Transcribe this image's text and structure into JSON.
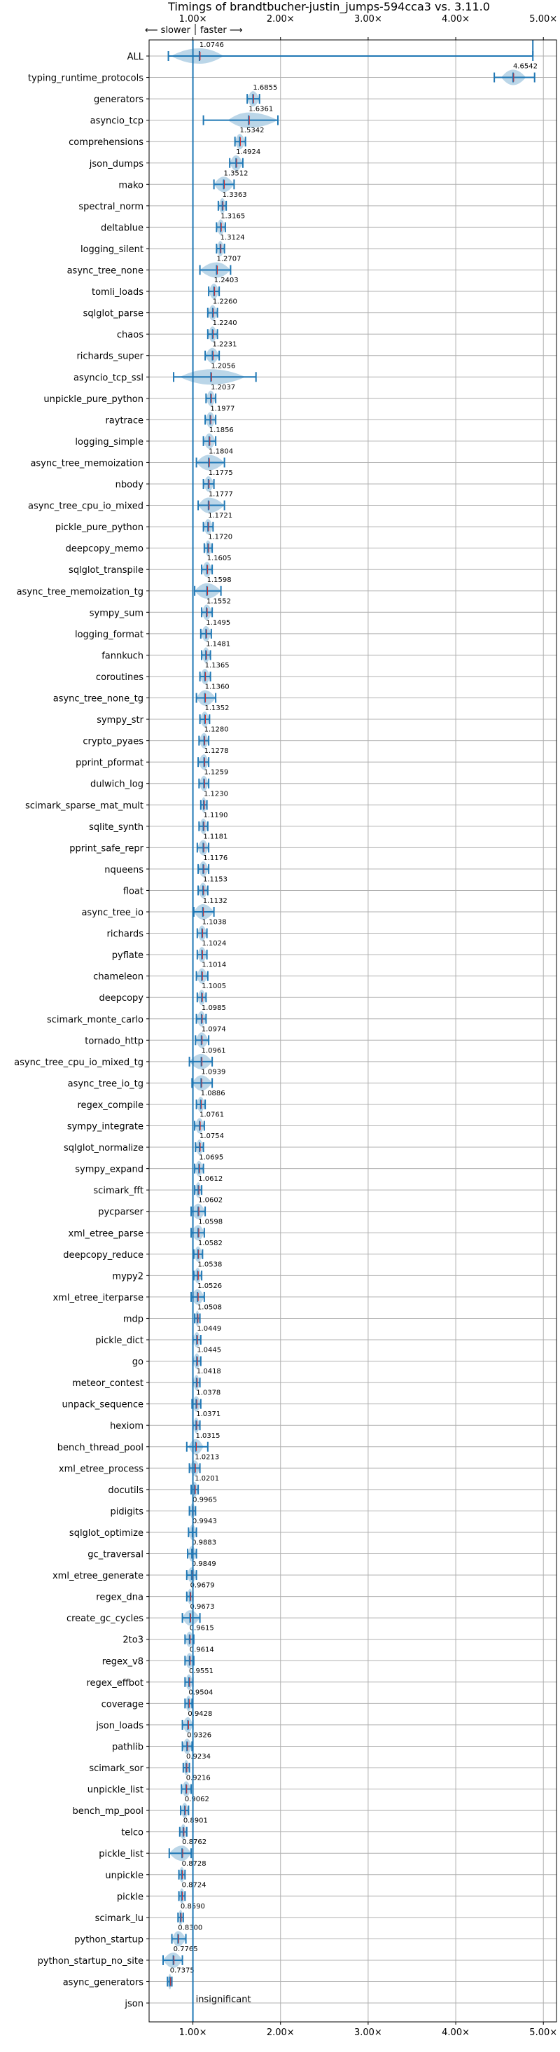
{
  "chart_data": {
    "type": "violin",
    "title": "Timings of brandtbucher-justin_jumps-594cca3 vs. 3.11.0",
    "direction_labels": {
      "slower": "⟵ slower",
      "faster": "faster ⟶"
    },
    "x_ticks": [
      {
        "value": 1,
        "label": "1.00×"
      },
      {
        "value": 2,
        "label": "2.00×"
      },
      {
        "value": 3,
        "label": "3.00×"
      },
      {
        "value": 4,
        "label": "4.00×"
      },
      {
        "value": 5,
        "label": "5.00×"
      }
    ],
    "xlim": [
      0.5,
      5.15
    ],
    "grid": true,
    "reference_line": 1.0,
    "insignificant_label": "insignificant",
    "benchmarks": [
      {
        "name": "ALL",
        "label": "1.0746",
        "value": 1.0746,
        "lo": 0.72,
        "hi": 4.88,
        "violin": [
          0.75,
          1.35
        ]
      },
      {
        "name": "typing_runtime_protocols",
        "label": "4.6542",
        "value": 4.6542,
        "lo": 4.44,
        "hi": 4.9,
        "violin": [
          4.52,
          4.8
        ]
      },
      {
        "name": "generators",
        "label": "1.6855",
        "value": 1.6855,
        "lo": 1.62,
        "hi": 1.76,
        "violin": [
          1.62,
          1.76
        ]
      },
      {
        "name": "asyncio_tcp",
        "label": "1.6361",
        "value": 1.6361,
        "lo": 1.12,
        "hi": 1.97,
        "violin": [
          1.4,
          1.97
        ]
      },
      {
        "name": "comprehensions",
        "label": "1.5342",
        "value": 1.5342,
        "lo": 1.48,
        "hi": 1.6,
        "violin": [
          1.48,
          1.6
        ]
      },
      {
        "name": "json_dumps",
        "label": "1.4924",
        "value": 1.4924,
        "lo": 1.42,
        "hi": 1.57,
        "violin": [
          1.42,
          1.57
        ]
      },
      {
        "name": "mako",
        "label": "1.3512",
        "value": 1.3512,
        "lo": 1.24,
        "hi": 1.47,
        "violin": [
          1.24,
          1.47
        ]
      },
      {
        "name": "spectral_norm",
        "label": "1.3363",
        "value": 1.3363,
        "lo": 1.29,
        "hi": 1.38,
        "violin": [
          1.29,
          1.38
        ]
      },
      {
        "name": "deltablue",
        "label": "1.3165",
        "value": 1.3165,
        "lo": 1.27,
        "hi": 1.37,
        "violin": [
          1.27,
          1.37
        ]
      },
      {
        "name": "logging_silent",
        "label": "1.3124",
        "value": 1.3124,
        "lo": 1.27,
        "hi": 1.36,
        "violin": [
          1.27,
          1.36
        ]
      },
      {
        "name": "async_tree_none",
        "label": "1.2707",
        "value": 1.2707,
        "lo": 1.08,
        "hi": 1.43,
        "violin": [
          1.08,
          1.43
        ]
      },
      {
        "name": "tomli_loads",
        "label": "1.2403",
        "value": 1.2403,
        "lo": 1.18,
        "hi": 1.3,
        "violin": [
          1.18,
          1.3
        ]
      },
      {
        "name": "sqlglot_parse",
        "label": "1.2260",
        "value": 1.226,
        "lo": 1.17,
        "hi": 1.28,
        "violin": [
          1.17,
          1.28
        ]
      },
      {
        "name": "chaos",
        "label": "1.2240",
        "value": 1.224,
        "lo": 1.17,
        "hi": 1.28,
        "violin": [
          1.17,
          1.28
        ]
      },
      {
        "name": "richards_super",
        "label": "1.2231",
        "value": 1.2231,
        "lo": 1.14,
        "hi": 1.3,
        "violin": [
          1.14,
          1.3
        ]
      },
      {
        "name": "asyncio_tcp_ssl",
        "label": "1.2056",
        "value": 1.2056,
        "lo": 0.78,
        "hi": 1.72,
        "violin": [
          0.85,
          1.6
        ]
      },
      {
        "name": "unpickle_pure_python",
        "label": "1.2037",
        "value": 1.2037,
        "lo": 1.15,
        "hi": 1.26,
        "violin": [
          1.15,
          1.26
        ]
      },
      {
        "name": "raytrace",
        "label": "1.1977",
        "value": 1.1977,
        "lo": 1.14,
        "hi": 1.26,
        "violin": [
          1.14,
          1.26
        ]
      },
      {
        "name": "logging_simple",
        "label": "1.1856",
        "value": 1.1856,
        "lo": 1.12,
        "hi": 1.26,
        "violin": [
          1.12,
          1.26
        ]
      },
      {
        "name": "async_tree_memoization",
        "label": "1.1804",
        "value": 1.1804,
        "lo": 1.04,
        "hi": 1.36,
        "violin": [
          1.04,
          1.36
        ]
      },
      {
        "name": "nbody",
        "label": "1.1775",
        "value": 1.1775,
        "lo": 1.12,
        "hi": 1.24,
        "violin": [
          1.12,
          1.24
        ]
      },
      {
        "name": "async_tree_cpu_io_mixed",
        "label": "1.1777",
        "value": 1.1777,
        "lo": 1.06,
        "hi": 1.36,
        "violin": [
          1.06,
          1.36
        ]
      },
      {
        "name": "pickle_pure_python",
        "label": "1.1721",
        "value": 1.1721,
        "lo": 1.12,
        "hi": 1.23,
        "violin": [
          1.12,
          1.23
        ]
      },
      {
        "name": "deepcopy_memo",
        "label": "1.1720",
        "value": 1.172,
        "lo": 1.13,
        "hi": 1.22,
        "violin": [
          1.13,
          1.22
        ]
      },
      {
        "name": "sqlglot_transpile",
        "label": "1.1605",
        "value": 1.1605,
        "lo": 1.1,
        "hi": 1.22,
        "violin": [
          1.1,
          1.22
        ]
      },
      {
        "name": "async_tree_memoization_tg",
        "label": "1.1598",
        "value": 1.1598,
        "lo": 1.02,
        "hi": 1.32,
        "violin": [
          1.02,
          1.32
        ]
      },
      {
        "name": "sympy_sum",
        "label": "1.1552",
        "value": 1.1552,
        "lo": 1.1,
        "hi": 1.22,
        "violin": [
          1.1,
          1.22
        ]
      },
      {
        "name": "logging_format",
        "label": "1.1495",
        "value": 1.1495,
        "lo": 1.09,
        "hi": 1.21,
        "violin": [
          1.09,
          1.21
        ]
      },
      {
        "name": "fannkuch",
        "label": "1.1481",
        "value": 1.1481,
        "lo": 1.1,
        "hi": 1.2,
        "violin": [
          1.1,
          1.2
        ]
      },
      {
        "name": "coroutines",
        "label": "1.1365",
        "value": 1.1365,
        "lo": 1.08,
        "hi": 1.2,
        "violin": [
          1.08,
          1.2
        ]
      },
      {
        "name": "async_tree_none_tg",
        "label": "1.1360",
        "value": 1.136,
        "lo": 1.04,
        "hi": 1.26,
        "violin": [
          1.04,
          1.26
        ]
      },
      {
        "name": "sympy_str",
        "label": "1.1352",
        "value": 1.1352,
        "lo": 1.08,
        "hi": 1.19,
        "violin": [
          1.08,
          1.19
        ]
      },
      {
        "name": "crypto_pyaes",
        "label": "1.1280",
        "value": 1.128,
        "lo": 1.07,
        "hi": 1.18,
        "violin": [
          1.07,
          1.18
        ]
      },
      {
        "name": "pprint_pformat",
        "label": "1.1278",
        "value": 1.1278,
        "lo": 1.06,
        "hi": 1.18,
        "violin": [
          1.06,
          1.18
        ]
      },
      {
        "name": "dulwich_log",
        "label": "1.1259",
        "value": 1.1259,
        "lo": 1.07,
        "hi": 1.18,
        "violin": [
          1.07,
          1.18
        ]
      },
      {
        "name": "scimark_sparse_mat_mult",
        "label": "1.1230",
        "value": 1.123,
        "lo": 1.09,
        "hi": 1.16,
        "violin": [
          1.09,
          1.16
        ]
      },
      {
        "name": "sqlite_synth",
        "label": "1.1190",
        "value": 1.119,
        "lo": 1.07,
        "hi": 1.17,
        "violin": [
          1.07,
          1.17
        ]
      },
      {
        "name": "pprint_safe_repr",
        "label": "1.1181",
        "value": 1.1181,
        "lo": 1.05,
        "hi": 1.18,
        "violin": [
          1.05,
          1.18
        ]
      },
      {
        "name": "nqueens",
        "label": "1.1176",
        "value": 1.1176,
        "lo": 1.06,
        "hi": 1.18,
        "violin": [
          1.06,
          1.18
        ]
      },
      {
        "name": "float",
        "label": "1.1153",
        "value": 1.1153,
        "lo": 1.06,
        "hi": 1.17,
        "violin": [
          1.06,
          1.17
        ]
      },
      {
        "name": "async_tree_io",
        "label": "1.1132",
        "value": 1.1132,
        "lo": 1.01,
        "hi": 1.24,
        "violin": [
          1.01,
          1.24
        ]
      },
      {
        "name": "richards",
        "label": "1.1038",
        "value": 1.1038,
        "lo": 1.05,
        "hi": 1.16,
        "violin": [
          1.05,
          1.16
        ]
      },
      {
        "name": "pyflate",
        "label": "1.1024",
        "value": 1.1024,
        "lo": 1.05,
        "hi": 1.16,
        "violin": [
          1.05,
          1.16
        ]
      },
      {
        "name": "chameleon",
        "label": "1.1014",
        "value": 1.1014,
        "lo": 1.04,
        "hi": 1.17,
        "violin": [
          1.04,
          1.17
        ]
      },
      {
        "name": "deepcopy",
        "label": "1.1005",
        "value": 1.1005,
        "lo": 1.05,
        "hi": 1.15,
        "violin": [
          1.05,
          1.15
        ]
      },
      {
        "name": "scimark_monte_carlo",
        "label": "1.0985",
        "value": 1.0985,
        "lo": 1.04,
        "hi": 1.15,
        "violin": [
          1.04,
          1.15
        ]
      },
      {
        "name": "tornado_http",
        "label": "1.0974",
        "value": 1.0974,
        "lo": 1.03,
        "hi": 1.18,
        "violin": [
          1.03,
          1.18
        ]
      },
      {
        "name": "async_tree_cpu_io_mixed_tg",
        "label": "1.0961",
        "value": 1.0961,
        "lo": 0.96,
        "hi": 1.22,
        "violin": [
          0.96,
          1.22
        ]
      },
      {
        "name": "async_tree_io_tg",
        "label": "1.0939",
        "value": 1.0939,
        "lo": 0.99,
        "hi": 1.22,
        "violin": [
          0.99,
          1.22
        ]
      },
      {
        "name": "regex_compile",
        "label": "1.0886",
        "value": 1.0886,
        "lo": 1.04,
        "hi": 1.14,
        "violin": [
          1.04,
          1.14
        ]
      },
      {
        "name": "sympy_integrate",
        "label": "1.0761",
        "value": 1.0761,
        "lo": 1.02,
        "hi": 1.13,
        "violin": [
          1.02,
          1.13
        ]
      },
      {
        "name": "sqlglot_normalize",
        "label": "1.0754",
        "value": 1.0754,
        "lo": 1.03,
        "hi": 1.12,
        "violin": [
          1.03,
          1.12
        ]
      },
      {
        "name": "sympy_expand",
        "label": "1.0695",
        "value": 1.0695,
        "lo": 1.02,
        "hi": 1.12,
        "violin": [
          1.02,
          1.12
        ]
      },
      {
        "name": "scimark_fft",
        "label": "1.0612",
        "value": 1.0612,
        "lo": 1.02,
        "hi": 1.1,
        "violin": [
          1.02,
          1.1
        ]
      },
      {
        "name": "pycparser",
        "label": "1.0602",
        "value": 1.0602,
        "lo": 0.98,
        "hi": 1.14,
        "violin": [
          0.98,
          1.14
        ]
      },
      {
        "name": "xml_etree_parse",
        "label": "1.0598",
        "value": 1.0598,
        "lo": 0.98,
        "hi": 1.13,
        "violin": [
          0.98,
          1.13
        ]
      },
      {
        "name": "deepcopy_reduce",
        "label": "1.0582",
        "value": 1.0582,
        "lo": 1.01,
        "hi": 1.11,
        "violin": [
          1.01,
          1.11
        ]
      },
      {
        "name": "mypy2",
        "label": "1.0538",
        "value": 1.0538,
        "lo": 1.01,
        "hi": 1.1,
        "violin": [
          1.01,
          1.1
        ]
      },
      {
        "name": "xml_etree_iterparse",
        "label": "1.0526",
        "value": 1.0526,
        "lo": 0.98,
        "hi": 1.13,
        "violin": [
          0.98,
          1.13
        ]
      },
      {
        "name": "mdp",
        "label": "1.0508",
        "value": 1.0508,
        "lo": 1.02,
        "hi": 1.08,
        "violin": [
          1.02,
          1.08
        ]
      },
      {
        "name": "pickle_dict",
        "label": "1.0449",
        "value": 1.0449,
        "lo": 1.0,
        "hi": 1.09,
        "violin": [
          1.0,
          1.09
        ]
      },
      {
        "name": "go",
        "label": "1.0445",
        "value": 1.0445,
        "lo": 1.0,
        "hi": 1.09,
        "violin": [
          1.0,
          1.09
        ]
      },
      {
        "name": "meteor_contest",
        "label": "1.0418",
        "value": 1.0418,
        "lo": 1.0,
        "hi": 1.08,
        "violin": [
          1.0,
          1.08
        ]
      },
      {
        "name": "unpack_sequence",
        "label": "1.0378",
        "value": 1.0378,
        "lo": 0.99,
        "hi": 1.09,
        "violin": [
          0.99,
          1.09
        ]
      },
      {
        "name": "hexiom",
        "label": "1.0371",
        "value": 1.0371,
        "lo": 1.0,
        "hi": 1.08,
        "violin": [
          1.0,
          1.08
        ]
      },
      {
        "name": "bench_thread_pool",
        "label": "1.0315",
        "value": 1.0315,
        "lo": 0.93,
        "hi": 1.17,
        "violin": [
          0.95,
          1.12
        ]
      },
      {
        "name": "xml_etree_process",
        "label": "1.0213",
        "value": 1.0213,
        "lo": 0.96,
        "hi": 1.08,
        "violin": [
          0.96,
          1.08
        ]
      },
      {
        "name": "docutils",
        "label": "1.0201",
        "value": 1.0201,
        "lo": 0.98,
        "hi": 1.06,
        "violin": [
          0.98,
          1.06
        ]
      },
      {
        "name": "pidigits",
        "label": "0.9965",
        "value": 0.9965,
        "lo": 0.96,
        "hi": 1.03,
        "violin": [
          0.96,
          1.03
        ]
      },
      {
        "name": "sqlglot_optimize",
        "label": "0.9943",
        "value": 0.9943,
        "lo": 0.95,
        "hi": 1.04,
        "violin": [
          0.95,
          1.04
        ]
      },
      {
        "name": "gc_traversal",
        "label": "0.9883",
        "value": 0.9883,
        "lo": 0.94,
        "hi": 1.04,
        "violin": [
          0.94,
          1.04
        ]
      },
      {
        "name": "xml_etree_generate",
        "label": "0.9849",
        "value": 0.9849,
        "lo": 0.93,
        "hi": 1.04,
        "violin": [
          0.93,
          1.04
        ]
      },
      {
        "name": "regex_dna",
        "label": "0.9679",
        "value": 0.9679,
        "lo": 0.93,
        "hi": 1.0,
        "violin": [
          0.93,
          1.0
        ]
      },
      {
        "name": "create_gc_cycles",
        "label": "0.9673",
        "value": 0.9673,
        "lo": 0.88,
        "hi": 1.08,
        "violin": [
          0.88,
          1.08
        ]
      },
      {
        "name": "2to3",
        "label": "0.9615",
        "value": 0.9615,
        "lo": 0.91,
        "hi": 1.01,
        "violin": [
          0.91,
          1.01
        ]
      },
      {
        "name": "regex_v8",
        "label": "0.9614",
        "value": 0.9614,
        "lo": 0.91,
        "hi": 1.01,
        "violin": [
          0.91,
          1.01
        ]
      },
      {
        "name": "regex_effbot",
        "label": "0.9551",
        "value": 0.9551,
        "lo": 0.91,
        "hi": 1.0,
        "violin": [
          0.91,
          1.0
        ]
      },
      {
        "name": "coverage",
        "label": "0.9504",
        "value": 0.9504,
        "lo": 0.91,
        "hi": 0.99,
        "violin": [
          0.91,
          0.99
        ]
      },
      {
        "name": "json_loads",
        "label": "0.9428",
        "value": 0.9428,
        "lo": 0.88,
        "hi": 1.0,
        "violin": [
          0.88,
          1.0
        ]
      },
      {
        "name": "pathlib",
        "label": "0.9326",
        "value": 0.9326,
        "lo": 0.88,
        "hi": 0.99,
        "violin": [
          0.88,
          0.99
        ]
      },
      {
        "name": "scimark_sor",
        "label": "0.9234",
        "value": 0.9234,
        "lo": 0.89,
        "hi": 0.96,
        "violin": [
          0.89,
          0.96
        ]
      },
      {
        "name": "unpickle_list",
        "label": "0.9216",
        "value": 0.9216,
        "lo": 0.87,
        "hi": 0.98,
        "violin": [
          0.87,
          0.98
        ]
      },
      {
        "name": "bench_mp_pool",
        "label": "0.9062",
        "value": 0.9062,
        "lo": 0.86,
        "hi": 0.95,
        "violin": [
          0.86,
          0.95
        ]
      },
      {
        "name": "telco",
        "label": "0.8901",
        "value": 0.8901,
        "lo": 0.85,
        "hi": 0.93,
        "violin": [
          0.85,
          0.93
        ]
      },
      {
        "name": "pickle_list",
        "label": "0.8762",
        "value": 0.8762,
        "lo": 0.73,
        "hi": 0.98,
        "violin": [
          0.73,
          0.98
        ]
      },
      {
        "name": "unpickle",
        "label": "0.8728",
        "value": 0.8728,
        "lo": 0.84,
        "hi": 0.91,
        "violin": [
          0.84,
          0.91
        ]
      },
      {
        "name": "pickle",
        "label": "0.8724",
        "value": 0.8724,
        "lo": 0.84,
        "hi": 0.91,
        "violin": [
          0.84,
          0.91
        ]
      },
      {
        "name": "scimark_lu",
        "label": "0.8590",
        "value": 0.859,
        "lo": 0.83,
        "hi": 0.89,
        "violin": [
          0.83,
          0.89
        ]
      },
      {
        "name": "python_startup",
        "label": "0.8300",
        "value": 0.83,
        "lo": 0.76,
        "hi": 0.92,
        "violin": [
          0.76,
          0.92
        ]
      },
      {
        "name": "python_startup_no_site",
        "label": "0.7765",
        "value": 0.7765,
        "lo": 0.66,
        "hi": 0.88,
        "violin": [
          0.66,
          0.88
        ]
      },
      {
        "name": "async_generators",
        "label": "0.7375",
        "value": 0.7375,
        "lo": 0.71,
        "hi": 0.76,
        "violin": [
          0.71,
          0.76
        ]
      },
      {
        "name": "json",
        "label": "",
        "value": null,
        "lo": null,
        "hi": null,
        "violin": null
      }
    ]
  }
}
